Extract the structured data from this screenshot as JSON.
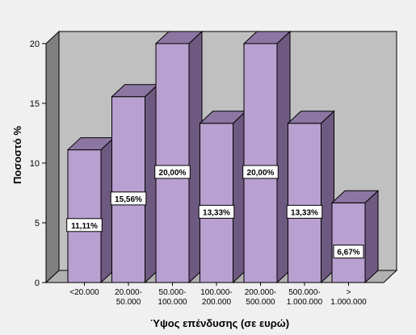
{
  "chart_data": {
    "type": "bar",
    "style": "3d",
    "title": "",
    "xlabel": "Ύψος επένδυσης (σε ευρώ)",
    "ylabel": "Ποσοστό %",
    "ylim": [
      0,
      20
    ],
    "yticks": [
      0,
      5,
      10,
      15,
      20
    ],
    "grid": false,
    "categories": [
      [
        "<20.000"
      ],
      [
        "20.000-",
        "50.000"
      ],
      [
        "50.000-",
        "100.000"
      ],
      [
        "100.000-",
        "200.000"
      ],
      [
        "200.000-",
        "500.000"
      ],
      [
        "500.000-",
        "1.000.000"
      ],
      [
        ">",
        "1.000.000"
      ]
    ],
    "values": [
      11.11,
      15.56,
      20.0,
      13.33,
      20.0,
      13.33,
      6.67
    ],
    "value_labels": [
      "11,11%",
      "15,56%",
      "20,00%",
      "13,33%",
      "20,00%",
      "13,33%",
      "6,67%"
    ],
    "colors": {
      "bar_front": "#b8a0d0",
      "bar_side": "#6e5a80",
      "bar_top": "#8c76a2",
      "plot_back": "#c0c0c0",
      "plot_floor": "#b0b0b0",
      "plot_left_wall": "#808080",
      "background": "#f0f0f0"
    }
  }
}
